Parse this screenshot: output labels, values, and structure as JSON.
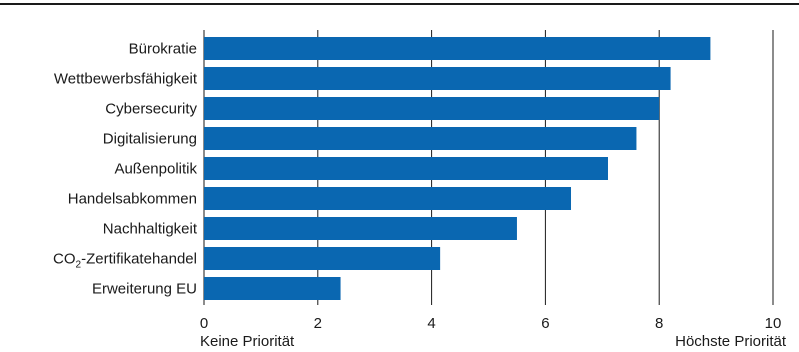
{
  "chart_data": {
    "type": "bar",
    "orientation": "horizontal",
    "categories": [
      "Bürokratie",
      "Wettbewerbsfähigkeit",
      "Cybersecurity",
      "Digitalisierung",
      "Außenpolitik",
      "Handelsabkommen",
      "Nachhaltigkeit",
      "CO2-Zertifikatehandel",
      "Erweiterung EU"
    ],
    "values": [
      8.9,
      8.2,
      8.0,
      7.6,
      7.1,
      6.45,
      5.5,
      4.15,
      2.4
    ],
    "xlim": [
      0,
      10
    ],
    "xticks": [
      0,
      2,
      4,
      6,
      8,
      10
    ],
    "xtick_labels": [
      "0",
      "2",
      "4",
      "6",
      "8",
      "10"
    ],
    "x_min_label": "Keine Priorität",
    "x_max_label": "Höchste Priorität",
    "grid": "vertical",
    "bar_color": "#0a67b1"
  }
}
